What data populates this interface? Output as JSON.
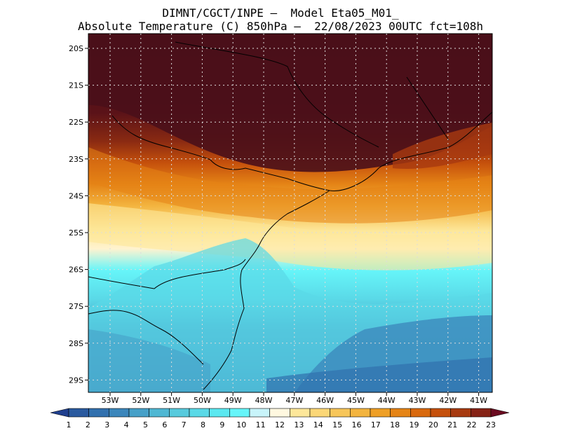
{
  "header": {
    "title_line1": "DIMNT/CGCT/INPE –  Model Eta05_M01_",
    "title_line2": "Absolute Temperature (C) 850hPa –  22/08/2023 00UTC fct=108h"
  },
  "map": {
    "lat_labels": [
      "20S",
      "21S",
      "22S",
      "23S",
      "24S",
      "25S",
      "26S",
      "27S",
      "28S",
      "29S"
    ],
    "lon_labels": [
      "53W",
      "52W",
      "51W",
      "50W",
      "49W",
      "48W",
      "47W",
      "46W",
      "45W",
      "44W",
      "43W",
      "42W",
      "41W"
    ]
  },
  "colorbar": {
    "labels": [
      "1",
      "2",
      "3",
      "4",
      "5",
      "6",
      "7",
      "8",
      "9",
      "10",
      "11",
      "12",
      "13",
      "14",
      "15",
      "16",
      "17",
      "18",
      "19",
      "20",
      "21",
      "22",
      "23"
    ],
    "colors": [
      "#1f3f8f",
      "#2a5a9f",
      "#3170ae",
      "#3b86bb",
      "#46a0c8",
      "#4fb7d3",
      "#57cadd",
      "#5ad9e7",
      "#5be8f0",
      "#66f5f9",
      "#c8f4fa",
      "#fff8e0",
      "#fde79a",
      "#fbd777",
      "#f7c65a",
      "#f3b43f",
      "#ee9f26",
      "#e58416",
      "#d9690e",
      "#c5500c",
      "#a73a10",
      "#862316",
      "#6b0a20"
    ]
  }
}
